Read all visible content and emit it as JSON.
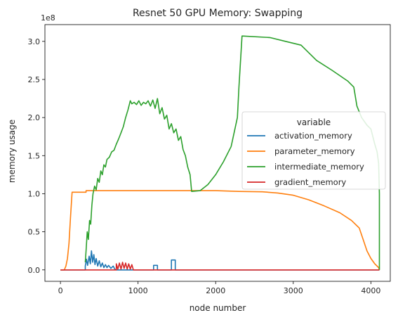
{
  "chart_data": {
    "type": "line",
    "title": "Resnet 50 GPU Memory: Swapping",
    "xlabel": "node number",
    "ylabel": "memory usage",
    "y_offset_label": "1e8",
    "xlim": [
      -200,
      4250
    ],
    "ylim": [
      -15000000,
      322000000
    ],
    "x_ticks": [
      0,
      1000,
      2000,
      3000,
      4000
    ],
    "x_tick_labels": [
      "0",
      "1000",
      "2000",
      "3000",
      "4000"
    ],
    "y_ticks": [
      0,
      50000000,
      100000000,
      150000000,
      200000000,
      250000000,
      300000000
    ],
    "y_tick_labels": [
      "0.0",
      "0.5",
      "1.0",
      "1.5",
      "2.0",
      "2.5",
      "3.0"
    ],
    "grid": false,
    "legend": {
      "title": "variable",
      "placement": "center-right"
    },
    "series": [
      {
        "name": "activation_memory",
        "color": "#1f77b4",
        "points": [
          [
            0,
            0
          ],
          [
            320,
            0
          ],
          [
            320,
            5000000
          ],
          [
            335,
            14000000
          ],
          [
            350,
            6000000
          ],
          [
            370,
            18000000
          ],
          [
            385,
            8000000
          ],
          [
            400,
            25000000
          ],
          [
            415,
            10000000
          ],
          [
            430,
            20000000
          ],
          [
            445,
            7000000
          ],
          [
            460,
            15000000
          ],
          [
            480,
            5000000
          ],
          [
            500,
            12000000
          ],
          [
            520,
            4000000
          ],
          [
            540,
            9000000
          ],
          [
            560,
            3000000
          ],
          [
            580,
            7000000
          ],
          [
            600,
            3000000
          ],
          [
            620,
            6000000
          ],
          [
            650,
            2000000
          ],
          [
            680,
            5000000
          ],
          [
            700,
            1000000
          ],
          [
            720,
            0
          ],
          [
            1200,
            0
          ],
          [
            1200,
            6000000
          ],
          [
            1250,
            6000000
          ],
          [
            1250,
            0
          ],
          [
            1430,
            0
          ],
          [
            1430,
            13000000
          ],
          [
            1480,
            13000000
          ],
          [
            1480,
            0
          ],
          [
            4110,
            0
          ]
        ]
      },
      {
        "name": "parameter_memory",
        "color": "#ff7f0e",
        "points": [
          [
            0,
            0
          ],
          [
            50,
            0
          ],
          [
            70,
            5000000
          ],
          [
            90,
            15000000
          ],
          [
            110,
            35000000
          ],
          [
            130,
            70000000
          ],
          [
            150,
            102000000
          ],
          [
            330,
            102000000
          ],
          [
            330,
            104000000
          ],
          [
            600,
            104000000
          ],
          [
            2000,
            104000000
          ],
          [
            2300,
            103000000
          ],
          [
            2600,
            102500000
          ],
          [
            2800,
            101000000
          ],
          [
            3000,
            98000000
          ],
          [
            3200,
            92000000
          ],
          [
            3400,
            84000000
          ],
          [
            3600,
            75000000
          ],
          [
            3750,
            65000000
          ],
          [
            3850,
            55000000
          ],
          [
            3900,
            40000000
          ],
          [
            3950,
            25000000
          ],
          [
            4000,
            15000000
          ],
          [
            4050,
            8000000
          ],
          [
            4100,
            3000000
          ],
          [
            4110,
            0
          ]
        ]
      },
      {
        "name": "intermediate_memory",
        "color": "#2ca02c",
        "points": [
          [
            320,
            10000000
          ],
          [
            330,
            25000000
          ],
          [
            345,
            50000000
          ],
          [
            360,
            40000000
          ],
          [
            375,
            65000000
          ],
          [
            390,
            60000000
          ],
          [
            405,
            85000000
          ],
          [
            420,
            100000000
          ],
          [
            440,
            110000000
          ],
          [
            460,
            105000000
          ],
          [
            480,
            120000000
          ],
          [
            500,
            115000000
          ],
          [
            520,
            130000000
          ],
          [
            540,
            125000000
          ],
          [
            560,
            138000000
          ],
          [
            580,
            135000000
          ],
          [
            600,
            145000000
          ],
          [
            630,
            148000000
          ],
          [
            660,
            155000000
          ],
          [
            690,
            157000000
          ],
          [
            720,
            165000000
          ],
          [
            750,
            172000000
          ],
          [
            780,
            180000000
          ],
          [
            810,
            188000000
          ],
          [
            840,
            200000000
          ],
          [
            870,
            210000000
          ],
          [
            900,
            222000000
          ],
          [
            920,
            218000000
          ],
          [
            950,
            220000000
          ],
          [
            980,
            217000000
          ],
          [
            1010,
            222000000
          ],
          [
            1040,
            216000000
          ],
          [
            1070,
            220000000
          ],
          [
            1100,
            218000000
          ],
          [
            1130,
            222000000
          ],
          [
            1160,
            215000000
          ],
          [
            1190,
            223000000
          ],
          [
            1220,
            212000000
          ],
          [
            1250,
            225000000
          ],
          [
            1280,
            205000000
          ],
          [
            1310,
            213000000
          ],
          [
            1340,
            198000000
          ],
          [
            1370,
            203000000
          ],
          [
            1400,
            185000000
          ],
          [
            1430,
            192000000
          ],
          [
            1460,
            180000000
          ],
          [
            1490,
            185000000
          ],
          [
            1520,
            170000000
          ],
          [
            1550,
            175000000
          ],
          [
            1580,
            158000000
          ],
          [
            1610,
            150000000
          ],
          [
            1640,
            135000000
          ],
          [
            1670,
            125000000
          ],
          [
            1690,
            103000000
          ],
          [
            1800,
            104000000
          ],
          [
            1900,
            112000000
          ],
          [
            2000,
            125000000
          ],
          [
            2100,
            142000000
          ],
          [
            2200,
            162000000
          ],
          [
            2280,
            200000000
          ],
          [
            2300,
            240000000
          ],
          [
            2340,
            307000000
          ],
          [
            2700,
            305000000
          ],
          [
            2900,
            300000000
          ],
          [
            3100,
            295000000
          ],
          [
            3300,
            275000000
          ],
          [
            3500,
            262000000
          ],
          [
            3700,
            248000000
          ],
          [
            3780,
            240000000
          ],
          [
            3820,
            215000000
          ],
          [
            3880,
            200000000
          ],
          [
            3950,
            190000000
          ],
          [
            4000,
            185000000
          ],
          [
            4050,
            165000000
          ],
          [
            4080,
            155000000
          ],
          [
            4100,
            140000000
          ],
          [
            4110,
            100000000
          ],
          [
            4110,
            0
          ]
        ]
      },
      {
        "name": "gradient_memory",
        "color": "#d62728",
        "points": [
          [
            0,
            0
          ],
          [
            720,
            0
          ],
          [
            720,
            8000000
          ],
          [
            740,
            1000000
          ],
          [
            760,
            9000000
          ],
          [
            780,
            1000000
          ],
          [
            800,
            10000000
          ],
          [
            820,
            2000000
          ],
          [
            840,
            9000000
          ],
          [
            860,
            1000000
          ],
          [
            880,
            8000000
          ],
          [
            900,
            1000000
          ],
          [
            920,
            7000000
          ],
          [
            940,
            0
          ],
          [
            4110,
            0
          ]
        ]
      }
    ]
  }
}
